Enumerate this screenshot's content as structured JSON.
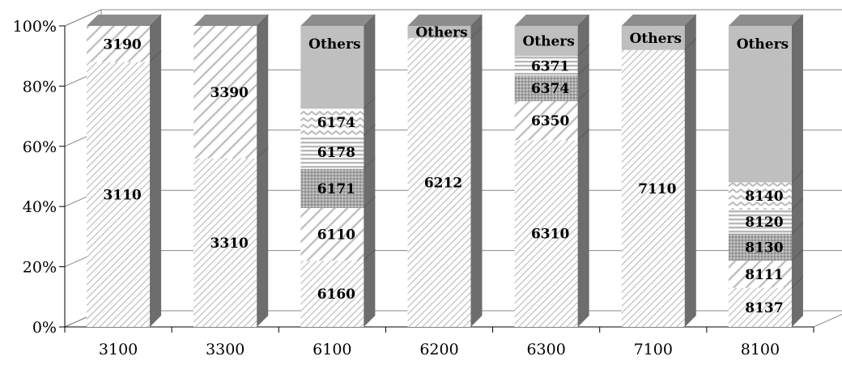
{
  "chart_data": {
    "type": "bar",
    "stacked": true,
    "percent": true,
    "three_d": true,
    "title": "",
    "xlabel": "",
    "ylabel": "",
    "ylim": [
      0,
      100
    ],
    "y_ticks": [
      "0%",
      "20%",
      "40%",
      "60%",
      "80%",
      "100%"
    ],
    "grid": true,
    "categories": [
      "3100",
      "3300",
      "6100",
      "6200",
      "6300",
      "7100",
      "8100"
    ],
    "stacks": [
      {
        "category": "3100",
        "segments": [
          {
            "label": "3110",
            "value": 88,
            "pattern": "diag-fine"
          },
          {
            "label": "3190",
            "value": 12,
            "pattern": "diag-wide"
          }
        ]
      },
      {
        "category": "3300",
        "segments": [
          {
            "label": "3310",
            "value": 56,
            "pattern": "diag-fine"
          },
          {
            "label": "3390",
            "value": 44,
            "pattern": "diag-wide"
          }
        ]
      },
      {
        "category": "6100",
        "segments": [
          {
            "label": "6160",
            "value": 22,
            "pattern": "diag-fine"
          },
          {
            "label": "6110",
            "value": 17.5,
            "pattern": "diag-wide"
          },
          {
            "label": "6171",
            "value": 13,
            "pattern": "dots"
          },
          {
            "label": "6178",
            "value": 11,
            "pattern": "horiz"
          },
          {
            "label": "6174",
            "value": 9,
            "pattern": "zigzag"
          },
          {
            "label": "Others",
            "value": 27.5,
            "pattern": "solid"
          }
        ]
      },
      {
        "category": "6200",
        "segments": [
          {
            "label": "6212",
            "value": 96,
            "pattern": "diag-fine"
          },
          {
            "label": "Others",
            "value": 4,
            "pattern": "solid"
          }
        ]
      },
      {
        "category": "6300",
        "segments": [
          {
            "label": "6310",
            "value": 62,
            "pattern": "diag-fine"
          },
          {
            "label": "6350",
            "value": 13,
            "pattern": "diag-wide"
          },
          {
            "label": "6374",
            "value": 8.5,
            "pattern": "dots"
          },
          {
            "label": "6371",
            "value": 6.5,
            "pattern": "horiz"
          },
          {
            "label": "Others",
            "value": 10,
            "pattern": "solid"
          }
        ]
      },
      {
        "category": "7100",
        "segments": [
          {
            "label": "7110",
            "value": 92,
            "pattern": "diag-fine"
          },
          {
            "label": "Others",
            "value": 8,
            "pattern": "solid"
          }
        ]
      },
      {
        "category": "8100",
        "segments": [
          {
            "label": "8137",
            "value": 13,
            "pattern": "diag-fine"
          },
          {
            "label": "8111",
            "value": 9,
            "pattern": "diag-wide"
          },
          {
            "label": "8130",
            "value": 9,
            "pattern": "dots"
          },
          {
            "label": "8120",
            "value": 8,
            "pattern": "horiz"
          },
          {
            "label": "8140",
            "value": 9,
            "pattern": "zigzag"
          },
          {
            "label": "Others",
            "value": 52,
            "pattern": "solid"
          }
        ]
      }
    ]
  }
}
